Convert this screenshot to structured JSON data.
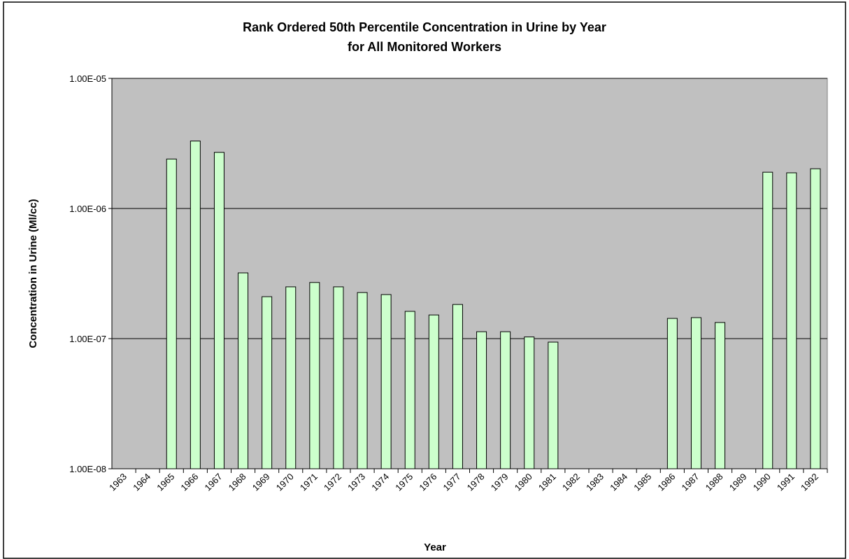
{
  "chart_data": {
    "type": "bar",
    "title": "Rank Ordered 50th Percentile Concentration in Urine by Year",
    "subtitle": "for All Monitored Workers",
    "x_label": "Year",
    "y_label": "Concentration in Urine (Ml/cc)",
    "categories": [
      "1963",
      "1964",
      "1965",
      "1966",
      "1967",
      "1968",
      "1969",
      "1970",
      "1971",
      "1972",
      "1973",
      "1974",
      "1975",
      "1976",
      "1977",
      "1978",
      "1979",
      "1980",
      "1981",
      "1982",
      "1983",
      "1984",
      "1985",
      "1986",
      "1987",
      "1988",
      "1989",
      "1990",
      "1991",
      "1992"
    ],
    "values": [
      null,
      null,
      2.4e-06,
      3.3e-06,
      2.7e-06,
      3.2e-07,
      2.1e-07,
      2.5e-07,
      2.7e-07,
      2.5e-07,
      2.26e-07,
      2.18e-07,
      1.62e-07,
      1.52e-07,
      1.83e-07,
      1.13e-07,
      1.13e-07,
      1.03e-07,
      9.4e-08,
      null,
      null,
      null,
      null,
      1.43e-07,
      1.45e-07,
      1.33e-07,
      null,
      1.9e-06,
      1.88e-06,
      2.02e-06
    ],
    "color": "#ccffcc",
    "log_y": true,
    "grid": true,
    "ylim": [
      1e-08,
      1e-05
    ],
    "yticks": [
      {
        "value": 1e-08,
        "label": "1.00E-08"
      },
      {
        "value": 1e-07,
        "label": "1.00E-07"
      },
      {
        "value": 1e-06,
        "label": "1.00E-06"
      },
      {
        "value": 1e-05,
        "label": "1.00E-05"
      }
    ]
  }
}
